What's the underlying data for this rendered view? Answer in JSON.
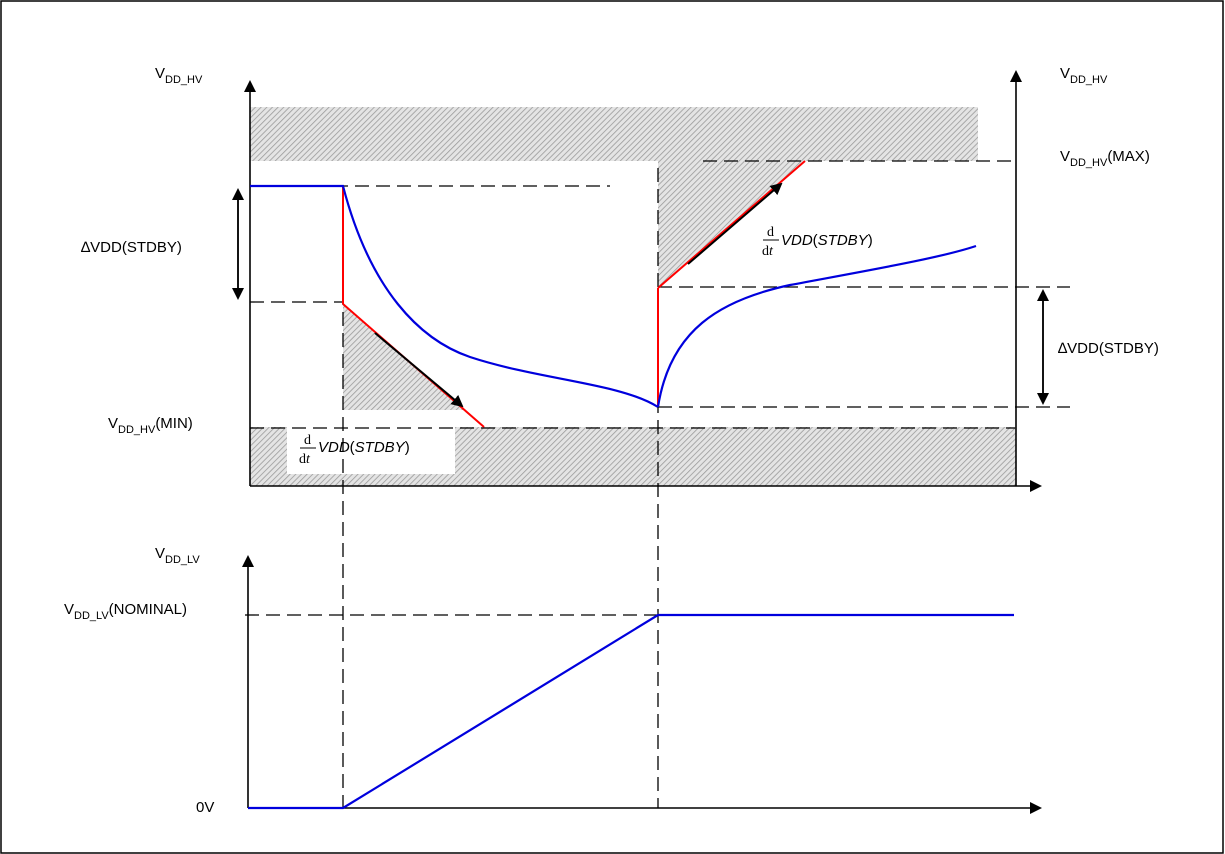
{
  "top_plot": {
    "y_axis_left_label": {
      "main": "V",
      "sub": "DD_HV"
    },
    "y_axis_right_label": {
      "main": "V",
      "sub": "DD_HV"
    },
    "vmax_label": {
      "main": "V",
      "sub": "DD_HV",
      "suffix": "(MAX)"
    },
    "vmin_label": {
      "main": "V",
      "sub": "DD_HV",
      "suffix": "(MIN)"
    },
    "delta_left_label": "∆VDD(STDBY)",
    "delta_right_label": "∆VDD(STDBY)",
    "slope_label_1": {
      "num": "d",
      "den_d": "d",
      "den_t": "t",
      "expr": "VDD",
      "paren_open": "(",
      "arg": "STDBY",
      "paren_close": ")"
    },
    "slope_label_2": {
      "num": "d",
      "den_d": "d",
      "den_t": "t",
      "expr": "VDD",
      "paren_open": "(",
      "arg": "STDBY",
      "paren_close": ")"
    }
  },
  "bottom_plot": {
    "y_axis_label": {
      "main": "V",
      "sub": "DD_LV"
    },
    "nominal_label": {
      "main": "V",
      "sub": "DD_LV",
      "suffix": "(NOMINAL)"
    },
    "zero_label": "0V"
  },
  "colors": {
    "supply_curve": "#0000dd",
    "slope_limit": "#ff0000",
    "axes": "#000000",
    "hatch": "#b0b0b0"
  }
}
